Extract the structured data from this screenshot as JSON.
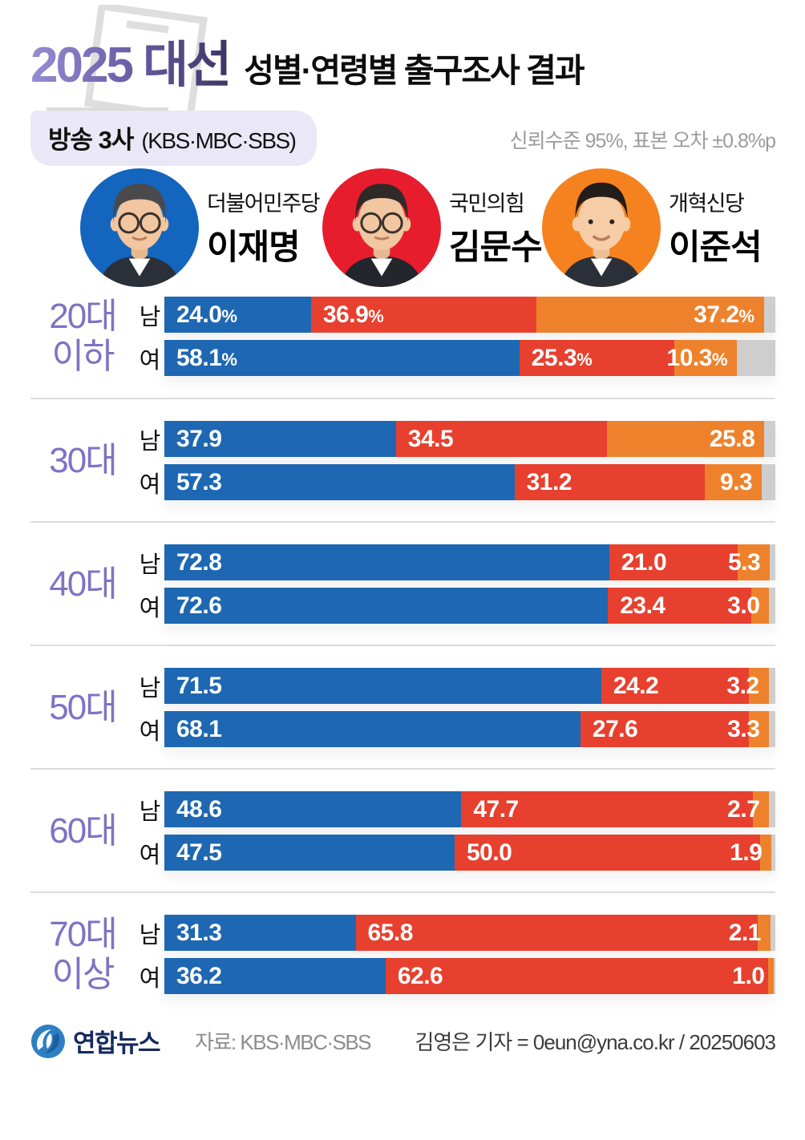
{
  "header": {
    "title_main": "2025 대선",
    "title_sub": "성별·연령별 출구조사 결과",
    "badge_main": "방송 3사",
    "badge_sub": "(KBS·MBC·SBS)",
    "note": "신뢰수준 95%, 표본 오차 ±0.8%p"
  },
  "colors": {
    "bar_blue": "#1e67b2",
    "bar_red": "#e7402e",
    "bar_orange": "#ee822c",
    "bar_remainder_gray": "#cecece",
    "age_label_purple": "#7c74c3",
    "title_gradient_from": "#958dd2",
    "title_gradient_to": "#3e3465",
    "badge_background": "#eae8f6",
    "footer_navy": "#16295f"
  },
  "candidates": [
    {
      "party": "더불어민주당",
      "name": "이재명",
      "circle_color": "#1365bd",
      "bar_color": "#1e67b2"
    },
    {
      "party": "국민의힘",
      "name": "김문수",
      "circle_color": "#e71c2c",
      "bar_color": "#e7402e"
    },
    {
      "party": "개혁신당",
      "name": "이준석",
      "circle_color": "#f5821f",
      "bar_color": "#ee822c"
    }
  ],
  "chart_data": {
    "type": "bar",
    "orientation": "horizontal",
    "stacked": true,
    "unit": "percent",
    "xlim": [
      0,
      100
    ],
    "series": [
      "더불어민주당 이재명",
      "국민의힘 김문수",
      "개혁신당 이준석"
    ],
    "series_keys": [
      "lee-jae-myung",
      "kim-moon-soo",
      "lee-jun-seok"
    ],
    "groups": [
      {
        "age_label": "20대 이하",
        "age_label_lines": [
          "20대",
          "이하"
        ],
        "rows": [
          {
            "gender": "남",
            "values": [
              24.0,
              36.9,
              37.2
            ],
            "labels": [
              "24.0%",
              "36.9%",
              "37.2%"
            ]
          },
          {
            "gender": "여",
            "values": [
              58.1,
              25.3,
              10.3
            ],
            "labels": [
              "58.1%",
              "25.3%",
              "10.3%"
            ]
          }
        ]
      },
      {
        "age_label": "30대",
        "age_label_lines": [
          "30대"
        ],
        "rows": [
          {
            "gender": "남",
            "values": [
              37.9,
              34.5,
              25.8
            ],
            "labels": [
              "37.9",
              "34.5",
              "25.8"
            ]
          },
          {
            "gender": "여",
            "values": [
              57.3,
              31.2,
              9.3
            ],
            "labels": [
              "57.3",
              "31.2",
              "9.3"
            ]
          }
        ]
      },
      {
        "age_label": "40대",
        "age_label_lines": [
          "40대"
        ],
        "rows": [
          {
            "gender": "남",
            "values": [
              72.8,
              21.0,
              5.3
            ],
            "labels": [
              "72.8",
              "21.0",
              "5.3"
            ]
          },
          {
            "gender": "여",
            "values": [
              72.6,
              23.4,
              3.0
            ],
            "labels": [
              "72.6",
              "23.4",
              "3.0"
            ]
          }
        ]
      },
      {
        "age_label": "50대",
        "age_label_lines": [
          "50대"
        ],
        "rows": [
          {
            "gender": "남",
            "values": [
              71.5,
              24.2,
              3.2
            ],
            "labels": [
              "71.5",
              "24.2",
              "3.2"
            ]
          },
          {
            "gender": "여",
            "values": [
              68.1,
              27.6,
              3.3
            ],
            "labels": [
              "68.1",
              "27.6",
              "3.3"
            ]
          }
        ]
      },
      {
        "age_label": "60대",
        "age_label_lines": [
          "60대"
        ],
        "rows": [
          {
            "gender": "남",
            "values": [
              48.6,
              47.7,
              2.7
            ],
            "labels": [
              "48.6",
              "47.7",
              "2.7"
            ]
          },
          {
            "gender": "여",
            "values": [
              47.5,
              50.0,
              1.9
            ],
            "labels": [
              "47.5",
              "50.0",
              "1.9"
            ]
          }
        ]
      },
      {
        "age_label": "70대 이상",
        "age_label_lines": [
          "70대",
          "이상"
        ],
        "rows": [
          {
            "gender": "남",
            "values": [
              31.3,
              65.8,
              2.1
            ],
            "labels": [
              "31.3",
              "65.8",
              "2.1"
            ]
          },
          {
            "gender": "여",
            "values": [
              36.2,
              62.6,
              1.0
            ],
            "labels": [
              "36.2",
              "62.6",
              "1.0"
            ]
          }
        ]
      }
    ]
  },
  "footer": {
    "logo_text": "연합뉴스",
    "source": "자료: KBS·MBC·SBS",
    "credit": "김영은 기자 = 0eun@yna.co.kr / 20250603"
  }
}
